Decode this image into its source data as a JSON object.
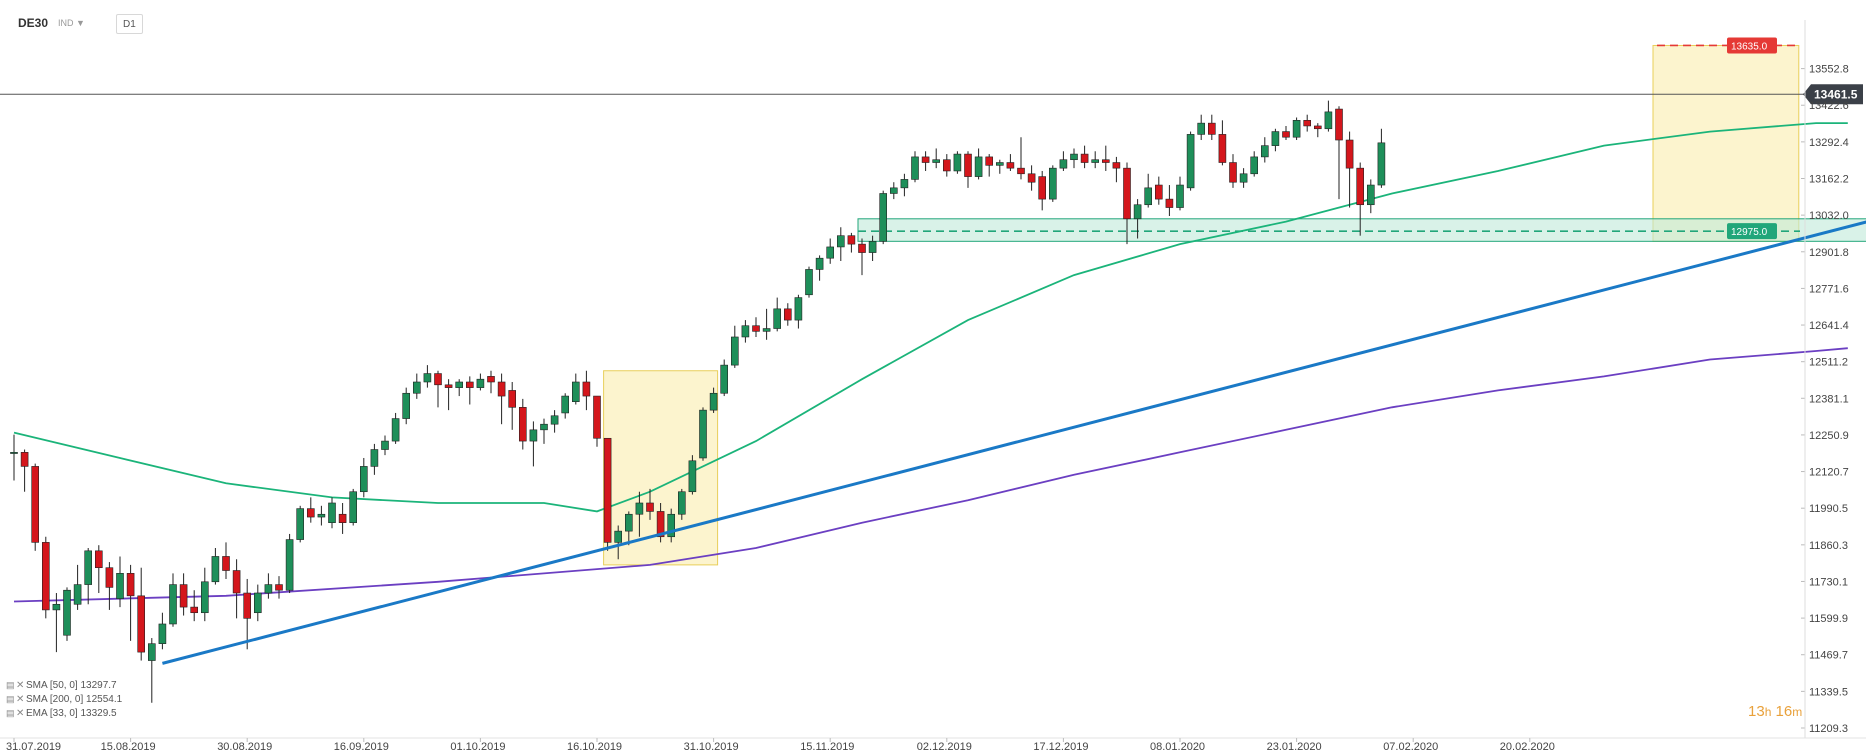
{
  "toolbar": {
    "symbol": "DE30",
    "symbol_sub": "IND",
    "timeframe": "D1"
  },
  "legend": [
    {
      "label": "SMA [50, 0] 13297.7",
      "icon": "list-icon",
      "color": "#888888"
    },
    {
      "label": "SMA [200, 0] 12554.1",
      "icon": "list-icon",
      "color": "#888888"
    },
    {
      "label": "EMA [33, 0] 13329.5",
      "icon": "list-icon",
      "color": "#888888"
    }
  ],
  "countdown": {
    "hours": "13",
    "h": "h",
    "minutes": "16",
    "m": "m"
  },
  "chart_data": {
    "type": "candlestick",
    "y_axis": {
      "min": 11209.3,
      "max": 13690,
      "position": "right",
      "ticks": [
        13552.8,
        13422.6,
        13292.4,
        13162.2,
        13032.0,
        12901.8,
        12771.6,
        12641.4,
        12511.2,
        12381.1,
        12250.9,
        12120.7,
        11990.5,
        11860.3,
        11730.1,
        11599.9,
        11469.7,
        11339.5,
        11209.3
      ],
      "tick_labels": [
        "13552.8",
        "13422.6",
        "13292.4",
        "13162.2",
        "13032.0",
        "12901.8",
        "12771.6",
        "12641.4",
        "12511.2",
        "12381.1",
        "12250.9",
        "12120.7",
        "11990.5",
        "11860.3",
        "11730.1",
        "11599.9",
        "11469.7",
        "11339.5",
        "11209.3"
      ]
    },
    "x_axis": {
      "first_date": "31.07.2019",
      "labels": [
        {
          "date": "31.07.2019",
          "index": 0
        },
        {
          "date": "15.08.2019",
          "index": 11
        },
        {
          "date": "30.08.2019",
          "index": 22
        },
        {
          "date": "16.09.2019",
          "index": 33
        },
        {
          "date": "01.10.2019",
          "index": 44
        },
        {
          "date": "16.10.2019",
          "index": 55
        },
        {
          "date": "31.10.2019",
          "index": 66
        },
        {
          "date": "15.11.2019",
          "index": 77
        },
        {
          "date": "02.12.2019",
          "index": 88
        },
        {
          "date": "17.12.2019",
          "index": 99
        },
        {
          "date": "08.01.2020",
          "index": 110
        },
        {
          "date": "23.01.2020",
          "index": 121
        },
        {
          "date": "07.02.2020",
          "index": 132
        },
        {
          "date": "20.02.2020",
          "index": 143
        }
      ]
    },
    "candles": [
      [
        12189,
        12189,
        12252,
        12089
      ],
      [
        12189,
        12139,
        12199,
        12049
      ],
      [
        12139,
        11869,
        12149,
        11839
      ],
      [
        11869,
        11629,
        11889,
        11599
      ],
      [
        11629,
        11649,
        11689,
        11479
      ],
      [
        11539,
        11699,
        11709,
        11519
      ],
      [
        11649,
        11719,
        11789,
        11629
      ],
      [
        11719,
        11839,
        11849,
        11649
      ],
      [
        11839,
        11779,
        11859,
        11689
      ],
      [
        11779,
        11709,
        11799,
        11629
      ],
      [
        11669,
        11759,
        11819,
        11639
      ],
      [
        11759,
        11679,
        11789,
        11519
      ],
      [
        11679,
        11479,
        11779,
        11449
      ],
      [
        11449,
        11509,
        11529,
        11299
      ],
      [
        11509,
        11579,
        11619,
        11489
      ],
      [
        11579,
        11719,
        11759,
        11569
      ],
      [
        11719,
        11639,
        11759,
        11609
      ],
      [
        11639,
        11619,
        11699,
        11589
      ],
      [
        11619,
        11729,
        11779,
        11589
      ],
      [
        11729,
        11819,
        11849,
        11719
      ],
      [
        11819,
        11769,
        11869,
        11739
      ],
      [
        11769,
        11689,
        11809,
        11599
      ],
      [
        11689,
        11599,
        11739,
        11489
      ],
      [
        11619,
        11689,
        11719,
        11589
      ],
      [
        11689,
        11719,
        11759,
        11669
      ],
      [
        11719,
        11699,
        11749,
        11669
      ],
      [
        11699,
        11879,
        11899,
        11689
      ],
      [
        11879,
        11989,
        11999,
        11869
      ],
      [
        11989,
        11959,
        12029,
        11939
      ],
      [
        11959,
        11969,
        11999,
        11929
      ],
      [
        11939,
        12009,
        12029,
        11919
      ],
      [
        11969,
        11939,
        12009,
        11899
      ],
      [
        11939,
        12049,
        12059,
        11929
      ],
      [
        12049,
        12139,
        12169,
        12029
      ],
      [
        12139,
        12199,
        12219,
        12109
      ],
      [
        12199,
        12229,
        12249,
        12179
      ],
      [
        12229,
        12309,
        12329,
        12219
      ],
      [
        12309,
        12399,
        12419,
        12289
      ],
      [
        12399,
        12439,
        12469,
        12379
      ],
      [
        12439,
        12469,
        12499,
        12419
      ],
      [
        12469,
        12429,
        12479,
        12349
      ],
      [
        12429,
        12419,
        12449,
        12339
      ],
      [
        12419,
        12439,
        12449,
        12389
      ],
      [
        12439,
        12419,
        12459,
        12359
      ],
      [
        12419,
        12449,
        12469,
        12409
      ],
      [
        12459,
        12439,
        12479,
        12399
      ],
      [
        12439,
        12389,
        12469,
        12289
      ],
      [
        12409,
        12349,
        12439,
        12269
      ],
      [
        12349,
        12229,
        12379,
        12199
      ],
      [
        12229,
        12269,
        12299,
        12139
      ],
      [
        12269,
        12289,
        12309,
        12219
      ],
      [
        12289,
        12319,
        12339,
        12259
      ],
      [
        12329,
        12389,
        12399,
        12309
      ],
      [
        12369,
        12439,
        12469,
        12359
      ],
      [
        12439,
        12389,
        12479,
        12339
      ],
      [
        12389,
        12239,
        12389,
        12209
      ],
      [
        12239,
        11869,
        12239,
        11839
      ],
      [
        11869,
        11909,
        11929,
        11809
      ],
      [
        11909,
        11969,
        11979,
        11859
      ],
      [
        11969,
        12009,
        12049,
        11889
      ],
      [
        12009,
        11979,
        12059,
        11949
      ],
      [
        11979,
        11889,
        12009,
        11869
      ],
      [
        11889,
        11969,
        11989,
        11869
      ],
      [
        11969,
        12049,
        12059,
        11949
      ],
      [
        12049,
        12159,
        12179,
        12039
      ],
      [
        12169,
        12339,
        12349,
        12159
      ],
      [
        12339,
        12399,
        12419,
        12329
      ],
      [
        12399,
        12499,
        12519,
        12389
      ],
      [
        12499,
        12599,
        12639,
        12489
      ],
      [
        12599,
        12639,
        12659,
        12579
      ],
      [
        12639,
        12619,
        12669,
        12599
      ],
      [
        12619,
        12629,
        12699,
        12589
      ],
      [
        12629,
        12699,
        12739,
        12619
      ],
      [
        12699,
        12659,
        12719,
        12639
      ],
      [
        12659,
        12739,
        12749,
        12629
      ],
      [
        12749,
        12839,
        12849,
        12739
      ],
      [
        12839,
        12879,
        12889,
        12799
      ],
      [
        12879,
        12919,
        12949,
        12859
      ],
      [
        12919,
        12959,
        12989,
        12869
      ],
      [
        12959,
        12929,
        12969,
        12899
      ],
      [
        12929,
        12899,
        12949,
        12819
      ],
      [
        12899,
        12939,
        12959,
        12869
      ],
      [
        12939,
        13109,
        13119,
        12929
      ],
      [
        13109,
        13129,
        13149,
        13089
      ],
      [
        13129,
        13159,
        13179,
        13099
      ],
      [
        13159,
        13239,
        13259,
        13149
      ],
      [
        13239,
        13219,
        13259,
        13189
      ],
      [
        13219,
        13229,
        13269,
        13199
      ],
      [
        13229,
        13189,
        13249,
        13169
      ],
      [
        13189,
        13249,
        13259,
        13179
      ],
      [
        13249,
        13169,
        13259,
        13129
      ],
      [
        13169,
        13239,
        13269,
        13159
      ],
      [
        13239,
        13209,
        13249,
        13169
      ],
      [
        13209,
        13219,
        13229,
        13179
      ],
      [
        13219,
        13199,
        13249,
        13189
      ],
      [
        13199,
        13179,
        13309,
        13159
      ],
      [
        13179,
        13149,
        13209,
        13119
      ],
      [
        13169,
        13089,
        13189,
        13049
      ],
      [
        13089,
        13199,
        13209,
        13079
      ],
      [
        13199,
        13229,
        13259,
        13189
      ],
      [
        13229,
        13249,
        13269,
        13199
      ],
      [
        13249,
        13219,
        13279,
        13199
      ],
      [
        13219,
        13229,
        13259,
        13199
      ],
      [
        13229,
        13219,
        13279,
        13189
      ],
      [
        13219,
        13199,
        13239,
        13149
      ],
      [
        13199,
        13019,
        13219,
        12929
      ],
      [
        13019,
        13069,
        13089,
        12949
      ],
      [
        13069,
        13129,
        13179,
        13059
      ],
      [
        13139,
        13089,
        13169,
        13069
      ],
      [
        13089,
        13059,
        13139,
        13029
      ],
      [
        13059,
        13139,
        13169,
        13049
      ],
      [
        13129,
        13319,
        13329,
        13119
      ],
      [
        13319,
        13359,
        13389,
        13299
      ],
      [
        13359,
        13319,
        13389,
        13299
      ],
      [
        13319,
        13219,
        13369,
        13209
      ],
      [
        13219,
        13149,
        13249,
        13129
      ],
      [
        13149,
        13179,
        13199,
        13129
      ],
      [
        13179,
        13239,
        13259,
        13169
      ],
      [
        13239,
        13279,
        13309,
        13219
      ],
      [
        13279,
        13329,
        13339,
        13259
      ],
      [
        13329,
        13309,
        13349,
        13299
      ],
      [
        13309,
        13369,
        13379,
        13299
      ],
      [
        13369,
        13349,
        13389,
        13329
      ],
      [
        13349,
        13339,
        13359,
        13309
      ],
      [
        13339,
        13399,
        13439,
        13329
      ],
      [
        13409,
        13299,
        13419,
        13089
      ],
      [
        13299,
        13199,
        13329,
        13059
      ],
      [
        13199,
        13069,
        13219,
        12959
      ],
      [
        13069,
        13139,
        13159,
        13039
      ],
      [
        13139,
        13289,
        13339,
        13129
      ]
    ],
    "sma50": [
      [
        0,
        12259
      ],
      [
        10,
        12169
      ],
      [
        20,
        12079
      ],
      [
        30,
        12029
      ],
      [
        40,
        12009
      ],
      [
        50,
        12009
      ],
      [
        55,
        11979
      ],
      [
        60,
        12049
      ],
      [
        70,
        12229
      ],
      [
        80,
        12449
      ],
      [
        90,
        12659
      ],
      [
        100,
        12819
      ],
      [
        110,
        12929
      ],
      [
        120,
        13009
      ],
      [
        130,
        13109
      ],
      [
        140,
        13189
      ],
      [
        150,
        13279
      ],
      [
        160,
        13329
      ],
      [
        170,
        13359
      ],
      [
        173,
        13359
      ]
    ],
    "sma200": [
      [
        0,
        11659
      ],
      [
        20,
        11679
      ],
      [
        40,
        11729
      ],
      [
        60,
        11789
      ],
      [
        70,
        11849
      ],
      [
        80,
        11939
      ],
      [
        90,
        12019
      ],
      [
        100,
        12109
      ],
      [
        110,
        12189
      ],
      [
        120,
        12269
      ],
      [
        130,
        12349
      ],
      [
        140,
        12409
      ],
      [
        150,
        12459
      ],
      [
        160,
        12519
      ],
      [
        170,
        12549
      ],
      [
        173,
        12559
      ]
    ],
    "trendline": {
      "from": [
        14,
        11439
      ],
      "to": [
        180,
        13059
      ],
      "color": "#1a79c6"
    },
    "support_zone": {
      "from_index": 80,
      "to_index": 180,
      "low": 12939,
      "high": 13019,
      "level": 12975.0,
      "label": "12975.0",
      "color": "#21a67a"
    },
    "resistance": {
      "from_index": 155,
      "level": 13635.0,
      "label": "13635.0",
      "color": "#e53935"
    },
    "highlight_boxes": [
      {
        "from_index": 56,
        "to_index": 66,
        "low": 11789,
        "high": 12479
      },
      {
        "from_index": 155,
        "to_index": 168,
        "low": 12939,
        "high": 13635
      }
    ],
    "last_price": {
      "value": 13461.5,
      "label": "13461.5"
    },
    "colors": {
      "up": "#1e8f5a",
      "down": "#d4161c",
      "sma50": "#1bb47a",
      "sma200": "#6b3fc2",
      "last_price_line": "#555555",
      "highlight_fill": "#fbf1c2",
      "highlight_stroke": "#e8cf5a"
    }
  }
}
